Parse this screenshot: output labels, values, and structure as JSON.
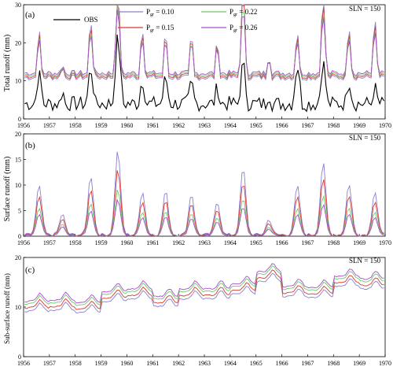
{
  "legend": {
    "obs": "OBS",
    "p010": "P = 0.10",
    "p015": "P = 0.15",
    "p022": "P = 0.22",
    "p026": "P = 0.26",
    "sub": "gr"
  },
  "chart_data": [
    {
      "type": "line",
      "panel": "(a)",
      "annotation": "SLN = 150",
      "ylabel": "Total runoff (mm)",
      "xlabel": "",
      "x_ticks": [
        "1956",
        "1957",
        "1958",
        "1959",
        "1960",
        "1961",
        "1962",
        "1963",
        "1964",
        "1965",
        "1966",
        "1967",
        "1968",
        "1969",
        "1970"
      ],
      "y_ticks": [
        0,
        10,
        20,
        30
      ],
      "xlim": [
        1956,
        1970
      ],
      "ylim": [
        0,
        30
      ],
      "grid": false,
      "legend_position": "top",
      "series": [
        {
          "name": "OBS",
          "color": "#000000",
          "base": [
            6,
            1.5
          ],
          "peak_scale": 0.85
        },
        {
          "name": "P_gr = 0.10",
          "color": "#8a7fd0",
          "base": [
            10.6,
            9.4
          ],
          "peak_scale": 1.35
        },
        {
          "name": "P_gr = 0.15",
          "color": "#d93a2f",
          "base": [
            11.0,
            10.0
          ],
          "peak_scale": 1.2
        },
        {
          "name": "P_gr = 0.22",
          "color": "#6dc76d",
          "base": [
            11.4,
            10.6
          ],
          "peak_scale": 1.05
        },
        {
          "name": "P_gr = 0.26",
          "color": "#a64fc8",
          "base": [
            11.8,
            11.2
          ],
          "peak_scale": 0.95
        }
      ],
      "annual_peaks": [
        {
          "year": 1956.6,
          "a": 19,
          "obs": 10.5
        },
        {
          "year": 1957.5,
          "a": 12.5,
          "obs": 6
        },
        {
          "year": 1958.6,
          "a": 21,
          "obs": 12
        },
        {
          "year": 1959.65,
          "a": 27.5,
          "obs": 20
        },
        {
          "year": 1960.6,
          "a": 19.5,
          "obs": 9
        },
        {
          "year": 1961.5,
          "a": 18.5,
          "obs": 9.5
        },
        {
          "year": 1962.5,
          "a": 18,
          "obs": 8
        },
        {
          "year": 1963.5,
          "a": 17,
          "obs": 7
        },
        {
          "year": 1964.5,
          "a": 27,
          "obs": 13
        },
        {
          "year": 1965.5,
          "a": 14.5,
          "obs": 5.5
        },
        {
          "year": 1966.6,
          "a": 19,
          "obs": 13
        },
        {
          "year": 1967.6,
          "a": 25.5,
          "obs": 13.5
        },
        {
          "year": 1968.6,
          "a": 20,
          "obs": 9
        },
        {
          "year": 1969.6,
          "a": 21,
          "obs": 7
        }
      ]
    },
    {
      "type": "line",
      "panel": "(b)",
      "annotation": "SLN = 150",
      "ylabel": "Surface runoff (mm)",
      "x_ticks": [
        "1956",
        "1957",
        "1958",
        "1959",
        "1960",
        "1961",
        "1962",
        "1963",
        "1964",
        "1965",
        "1966",
        "1967",
        "1968",
        "1969",
        "1970"
      ],
      "y_ticks": [
        0,
        5,
        10,
        15,
        20
      ],
      "xlim": [
        1956,
        1970
      ],
      "ylim": [
        0,
        20
      ],
      "grid": false,
      "series": [
        {
          "name": "P_gr = 0.10",
          "color": "#8a7fd0",
          "peak_scale": 1.0
        },
        {
          "name": "P_gr = 0.15",
          "color": "#d93a2f",
          "peak_scale": 0.78
        },
        {
          "name": "P_gr = 0.22",
          "color": "#6dc76d",
          "peak_scale": 0.55
        },
        {
          "name": "P_gr = 0.26",
          "color": "#a64fc8",
          "peak_scale": 0.43
        }
      ],
      "annual_peaks": [
        {
          "year": 1956.6,
          "b": 9.5
        },
        {
          "year": 1957.5,
          "b": 4
        },
        {
          "year": 1958.6,
          "b": 11.5
        },
        {
          "year": 1959.65,
          "b": 16.5
        },
        {
          "year": 1960.6,
          "b": 8.5
        },
        {
          "year": 1961.5,
          "b": 8.5
        },
        {
          "year": 1962.5,
          "b": 8
        },
        {
          "year": 1963.5,
          "b": 6.5
        },
        {
          "year": 1964.5,
          "b": 13
        },
        {
          "year": 1965.5,
          "b": 3
        },
        {
          "year": 1966.6,
          "b": 9.5
        },
        {
          "year": 1967.6,
          "b": 14
        },
        {
          "year": 1968.6,
          "b": 10
        },
        {
          "year": 1969.6,
          "b": 8.5
        }
      ]
    },
    {
      "type": "line",
      "panel": "(c)",
      "annotation": "SLN = 150",
      "ylabel": "Sub-surface runoff (mm)",
      "x_ticks": [
        "1956",
        "1957",
        "1958",
        "1959",
        "1960",
        "1961",
        "1962",
        "1963",
        "1964",
        "1965",
        "1966",
        "1967",
        "1968",
        "1969",
        "1970"
      ],
      "y_ticks": [
        0,
        10,
        20
      ],
      "xlim": [
        1956,
        1970
      ],
      "ylim": [
        0,
        20
      ],
      "grid": false,
      "series": [
        {
          "name": "P_gr = 0.10",
          "color": "#8a7fd0",
          "offset": -1.0
        },
        {
          "name": "P_gr = 0.15",
          "color": "#d93a2f",
          "offset": -0.3
        },
        {
          "name": "P_gr = 0.22",
          "color": "#6dc76d",
          "offset": 0.5
        },
        {
          "name": "P_gr = 0.26",
          "color": "#a64fc8",
          "offset": 1.0
        }
      ],
      "yearly_level": [
        10,
        10.2,
        9.8,
        12,
        12.5,
        11,
        12.5,
        12.5,
        13.5,
        16,
        13,
        12.8,
        15,
        14.5,
        14
      ]
    }
  ]
}
